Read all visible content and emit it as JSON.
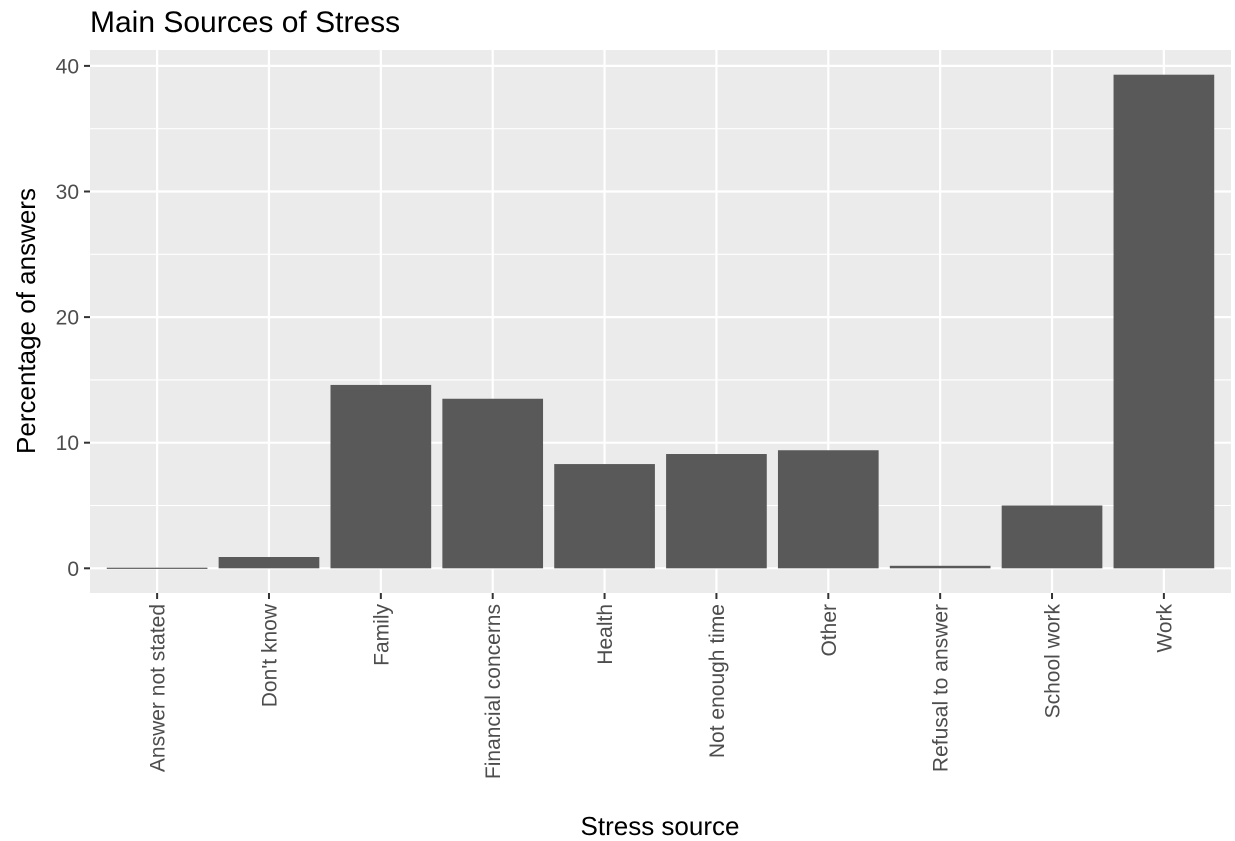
{
  "chart_data": {
    "type": "bar",
    "title": "Main Sources of Stress",
    "xlabel": "Stress source",
    "ylabel": "Percentage of answers",
    "categories": [
      "Answer not stated",
      "Don't know",
      "Family",
      "Financial concerns",
      "Health",
      "Not enough time",
      "Other",
      "Refusal to answer",
      "School work",
      "Work"
    ],
    "values": [
      0.05,
      0.9,
      14.6,
      13.5,
      8.3,
      9.1,
      9.4,
      0.2,
      5.0,
      39.3
    ],
    "yticks": [
      0,
      10,
      20,
      30,
      40
    ],
    "ylim": [
      -1.9657,
      41.2657
    ],
    "grid": true,
    "colors": {
      "bar": "#595959",
      "panel": "#ebebeb",
      "grid": "#ffffff"
    }
  }
}
